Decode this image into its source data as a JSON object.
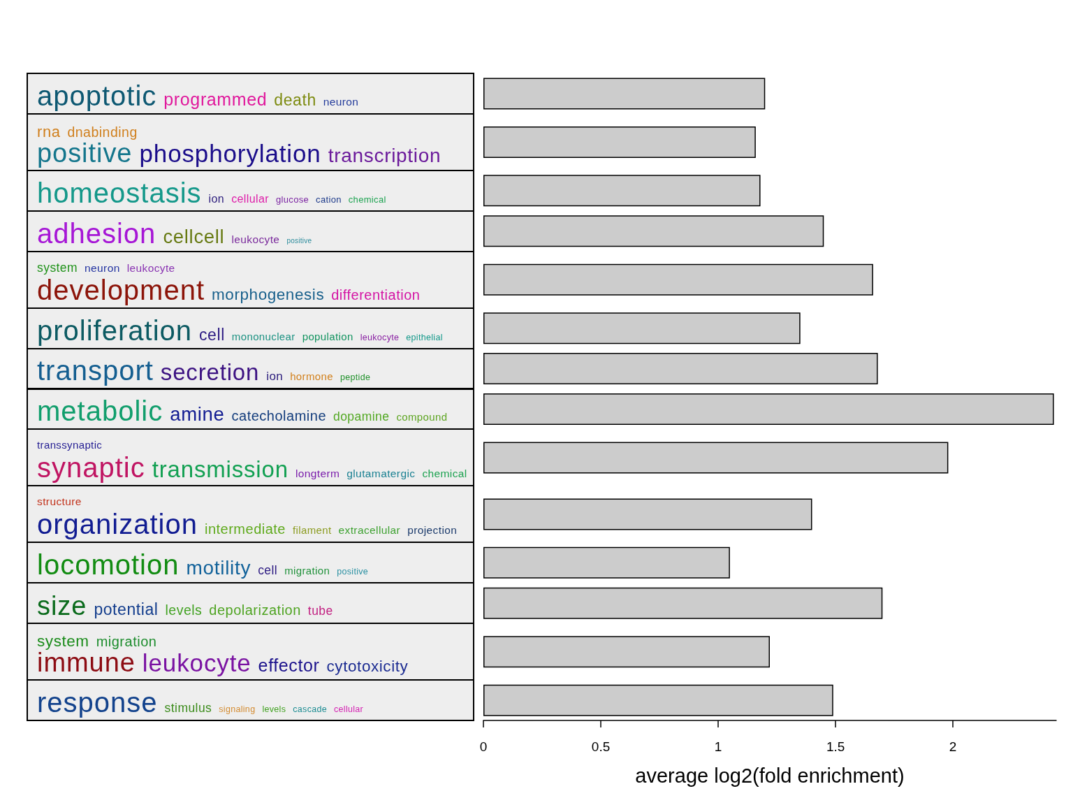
{
  "chart_data": {
    "type": "bar",
    "orientation": "horizontal",
    "categories": [
      "apoptotic programmed death neuron",
      "rna dnabinding positive phosphorylation transcription",
      "homeostasis ion cellular glucose cation chemical",
      "adhesion cellcell leukocyte positive",
      "system neuron leukocyte development morphogenesis differentiation",
      "proliferation cell mononuclear population leukocyte epithelial",
      "transport secretion ion hormone peptide",
      "metabolic amine catecholamine dopamine compound",
      "transsynaptic synaptic transmission longterm glutamatergic chemical",
      "structure organization intermediate filament extracellular projection",
      "locomotion motility cell migration positive",
      "size potential levels depolarization tube",
      "system migration immune leukocyte effector cytotoxicity",
      "response stimulus signaling levels cascade cellular"
    ],
    "values": [
      1.2,
      1.16,
      1.18,
      1.45,
      1.66,
      1.35,
      1.68,
      2.43,
      1.98,
      1.4,
      1.05,
      1.7,
      1.22,
      1.49
    ],
    "color": "#cccccc",
    "xlabel": "average log2(fold enrichment)",
    "xlim": [
      0,
      2.44
    ],
    "xticks": [
      0,
      0.5,
      1,
      1.5,
      2
    ]
  }
}
